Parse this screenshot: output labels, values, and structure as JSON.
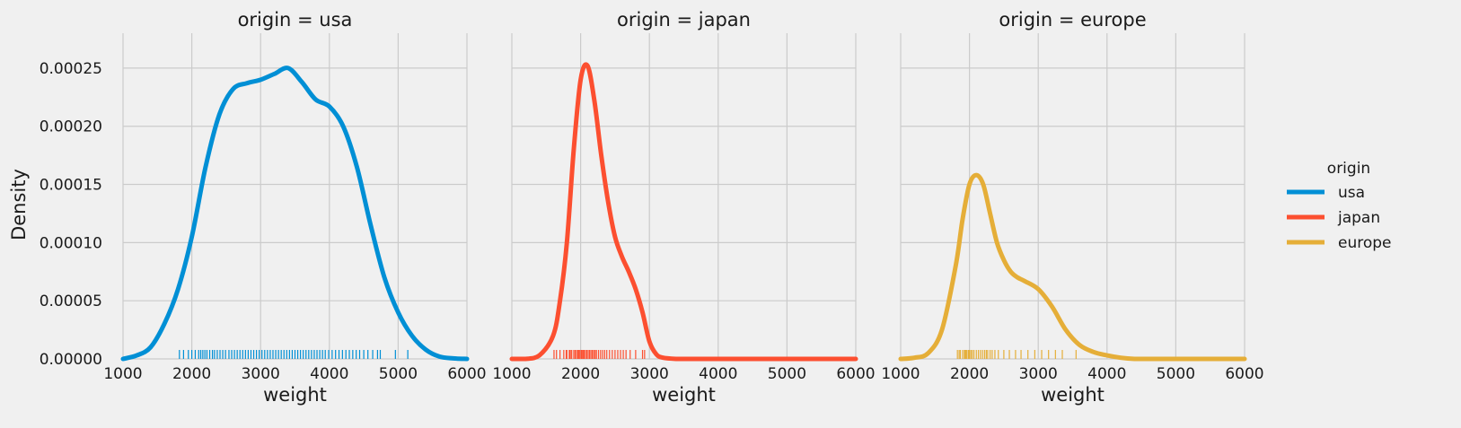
{
  "chart_data": {
    "type": "line",
    "kind": "kde density facet grid with rug",
    "ylabel": "Density",
    "xlim": [
      1000,
      6000
    ],
    "ylim": [
      0,
      0.00028
    ],
    "x_ticks": [
      1000,
      2000,
      3000,
      4000,
      5000,
      6000
    ],
    "y_ticks": [
      0,
      5e-05,
      0.0001,
      0.00015,
      0.0002,
      0.00025
    ],
    "y_tick_labels": [
      "0.00000",
      "0.00005",
      "0.00010",
      "0.00015",
      "0.00020",
      "0.00025"
    ],
    "grid": true,
    "legend": {
      "title": "origin",
      "placement": "right",
      "entries": [
        {
          "label": "usa",
          "color": "#008fd5"
        },
        {
          "label": "japan",
          "color": "#fc4f30"
        },
        {
          "label": "europe",
          "color": "#e5ae38"
        }
      ]
    },
    "panels": [
      {
        "title": "origin = usa",
        "series_name": "usa",
        "xlabel": "weight",
        "color": "#008fd5",
        "x": [
          1000,
          1200,
          1400,
          1600,
          1800,
          2000,
          2200,
          2400,
          2600,
          2800,
          3000,
          3200,
          3400,
          3600,
          3800,
          4000,
          4200,
          4400,
          4600,
          4800,
          5000,
          5200,
          5400,
          5600,
          5800,
          6000
        ],
        "y": [
          0.0,
          3e-06,
          1e-05,
          3e-05,
          6e-05,
          0.000105,
          0.000165,
          0.00021,
          0.000232,
          0.000237,
          0.00024,
          0.000245,
          0.00025,
          0.000238,
          0.000223,
          0.000217,
          0.0002,
          0.000165,
          0.000115,
          7e-05,
          4e-05,
          2e-05,
          8e-06,
          2e-06,
          5e-07,
          0.0
        ],
        "rug": [
          1820,
          1880,
          1950,
          2000,
          2050,
          2100,
          2130,
          2160,
          2190,
          2220,
          2260,
          2300,
          2330,
          2370,
          2410,
          2450,
          2490,
          2540,
          2580,
          2620,
          2660,
          2700,
          2740,
          2780,
          2820,
          2860,
          2900,
          2940,
          2980,
          3020,
          3060,
          3100,
          3140,
          3180,
          3220,
          3260,
          3300,
          3340,
          3380,
          3420,
          3460,
          3500,
          3540,
          3580,
          3620,
          3660,
          3700,
          3740,
          3780,
          3820,
          3860,
          3900,
          3940,
          3990,
          4040,
          4090,
          4140,
          4190,
          4240,
          4290,
          4340,
          4390,
          4440,
          4500,
          4560,
          4630,
          4700,
          4740,
          4960,
          5140
        ]
      },
      {
        "title": "origin = japan",
        "series_name": "japan",
        "xlabel": "weight",
        "color": "#fc4f30",
        "x": [
          1000,
          1200,
          1400,
          1600,
          1700,
          1800,
          1900,
          2000,
          2100,
          2200,
          2300,
          2400,
          2500,
          2600,
          2700,
          2800,
          2900,
          3000,
          3100,
          3200,
          3400,
          3600,
          4000,
          6000
        ],
        "y": [
          0.0,
          0.0,
          3e-06,
          2e-05,
          5e-05,
          0.0001,
          0.00018,
          0.00024,
          0.000252,
          0.000222,
          0.000175,
          0.000135,
          0.000105,
          8.8e-05,
          7.5e-05,
          6e-05,
          4e-05,
          1.5e-05,
          4e-06,
          1e-06,
          0.0,
          0.0,
          0.0,
          0.0
        ],
        "rug": [
          1613,
          1649,
          1700,
          1755,
          1790,
          1800,
          1835,
          1850,
          1870,
          1900,
          1920,
          1940,
          1960,
          1975,
          1990,
          2010,
          2020,
          2035,
          2050,
          2070,
          2090,
          2110,
          2130,
          2150,
          2170,
          2190,
          2210,
          2230,
          2260,
          2290,
          2320,
          2350,
          2380,
          2420,
          2460,
          2500,
          2540,
          2580,
          2620,
          2660,
          2720,
          2800,
          2900,
          2930
        ]
      },
      {
        "title": "origin = europe",
        "series_name": "europe",
        "xlabel": "weight",
        "color": "#e5ae38",
        "x": [
          1000,
          1200,
          1400,
          1600,
          1800,
          1900,
          2000,
          2100,
          2200,
          2300,
          2400,
          2500,
          2600,
          2700,
          2800,
          3000,
          3200,
          3400,
          3600,
          3800,
          4000,
          4200,
          4400,
          4600,
          6000
        ],
        "y": [
          0.0,
          1e-06,
          5e-06,
          2.5e-05,
          8e-05,
          0.00012,
          0.00015,
          0.000158,
          0.00015,
          0.000125,
          0.0001,
          8.5e-05,
          7.5e-05,
          7e-05,
          6.7e-05,
          6e-05,
          4.5e-05,
          2.5e-05,
          1.2e-05,
          6e-06,
          3e-06,
          1e-06,
          0.0,
          0.0,
          0.0
        ],
        "rug": [
          1825,
          1850,
          1867,
          1900,
          1925,
          1940,
          1950,
          1963,
          1985,
          2000,
          2020,
          2040,
          2065,
          2100,
          2130,
          2160,
          2190,
          2220,
          2245,
          2265,
          2300,
          2330,
          2370,
          2420,
          2500,
          2580,
          2670,
          2750,
          2850,
          2950,
          3050,
          3150,
          3250,
          3350,
          3550
        ]
      }
    ]
  }
}
